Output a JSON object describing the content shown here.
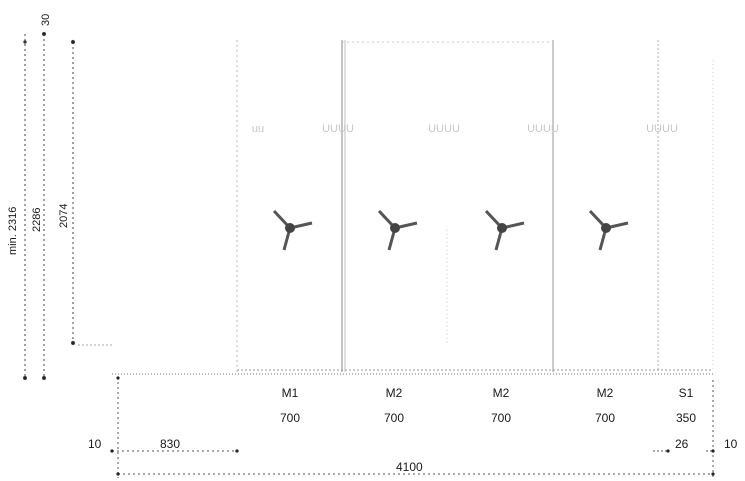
{
  "colors": {
    "ink": "#1a1a1a",
    "faint_line": "#b8b8b8",
    "dotted": "#a0a0a0",
    "handle_icon": "#555555",
    "handle_icon_center": "#444444"
  },
  "vertical_dimensions": {
    "top_gap": "30",
    "min_height": "min. 2316",
    "total_height": "2286",
    "opening_height": "2074"
  },
  "header_labels": [
    "uu",
    "UUUU",
    "UUUU",
    "UUUU",
    "UUUU"
  ],
  "panels": [
    {
      "type": "M1",
      "width": "700",
      "has_handle": true,
      "icon": "window-handle-icon"
    },
    {
      "type": "M2",
      "width": "700",
      "has_handle": true,
      "icon": "window-handle-icon"
    },
    {
      "type": "M2",
      "width": "700",
      "has_handle": true,
      "icon": "window-handle-icon"
    },
    {
      "type": "M2",
      "width": "700",
      "has_handle": true,
      "icon": "window-handle-icon"
    },
    {
      "type": "S1",
      "width": "350",
      "has_handle": false
    }
  ],
  "horizontal_dimensions": {
    "left_edge": "10",
    "left_offset": "830",
    "right_gap": "26",
    "right_edge": "10",
    "total_width": "4100"
  }
}
